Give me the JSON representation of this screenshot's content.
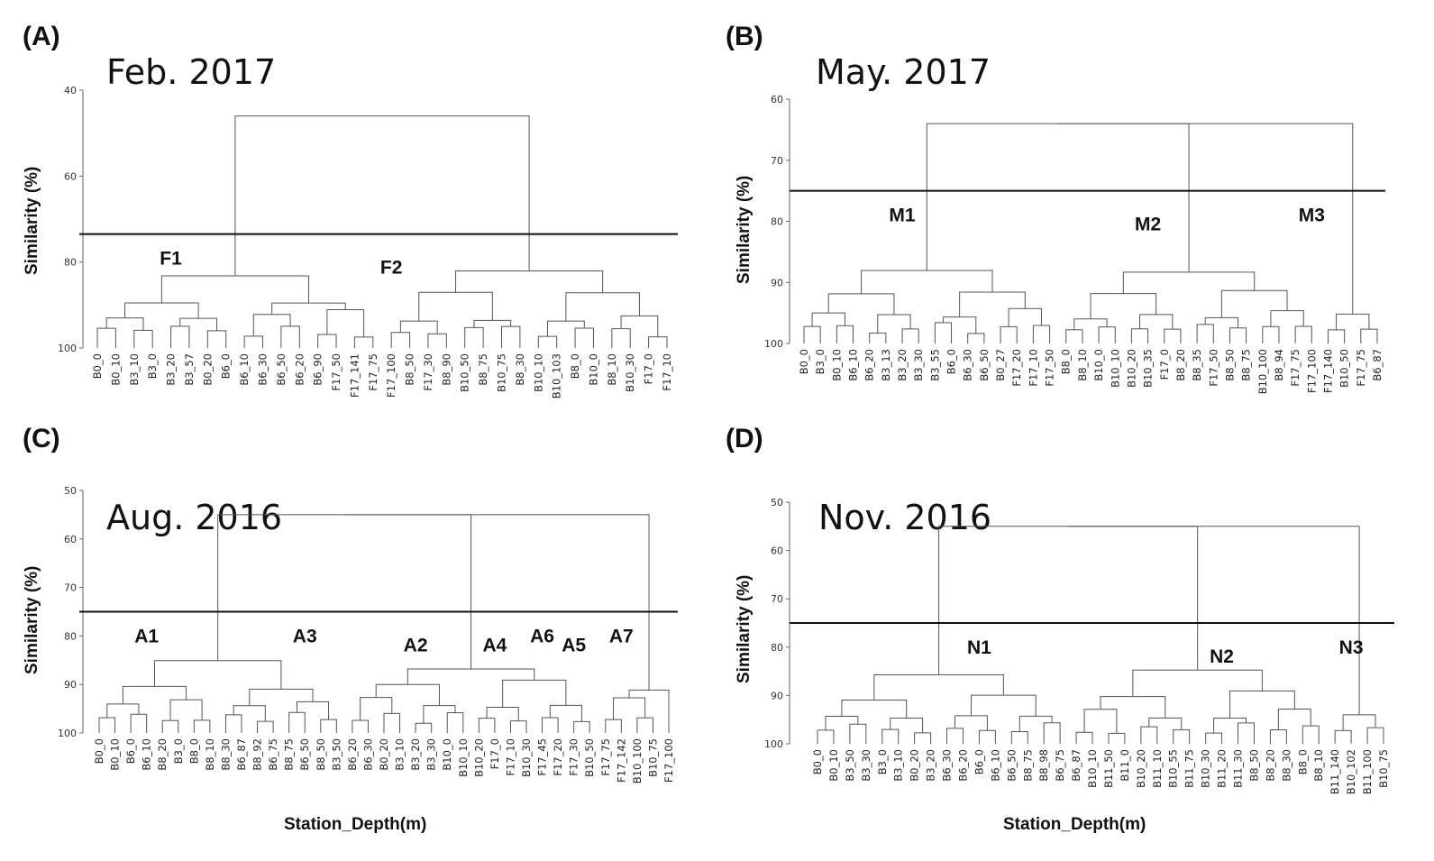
{
  "chart_data": [
    {
      "type": "dendrogram",
      "panel_label": "(A)",
      "title": "Feb. 2017",
      "ylabel": "Similarity (%)",
      "xlabel": "",
      "y_ticks": [
        40,
        60,
        80,
        100
      ],
      "ylim": [
        40,
        100
      ],
      "cut_line": 73.5,
      "leaves": [
        "B0_0",
        "B0_10",
        "B3_10",
        "B3_0",
        "B3_20",
        "B3_57",
        "B0_20",
        "B6_0",
        "B6_10",
        "B6_30",
        "B6_50",
        "B6_20",
        "B6_90",
        "F17_50",
        "F17_141",
        "F17_75",
        "F17_100",
        "B8_50",
        "F17_30",
        "B8_90",
        "B10_50",
        "B8_75",
        "B10_75",
        "B8_30",
        "B10_10",
        "B10_103",
        "B8_0",
        "B10_0",
        "B8_10",
        "B10_30",
        "F17_0",
        "F17_10"
      ],
      "merges": [
        {
          "a": 3,
          "b": 4,
          "y": 95.0
        },
        {
          "a": 13,
          "b": 14,
          "y": 95.0
        },
        {
          "a": 1,
          "b": 2,
          "y": 90.0
        },
        {
          "a": 27,
          "b": 28,
          "y": 94.0
        },
        {
          "a": 4,
          "b": 5,
          "y": 90.5
        },
        {
          "a": 8,
          "b": 12,
          "y": 94.0
        },
        {
          "a": 9,
          "b": 10,
          "y": 93.0
        },
        {
          "a": 6,
          "b": 7,
          "y": 92.0
        },
        {
          "a": 11,
          "b": 12,
          "y": 93.5
        },
        {
          "a": 22,
          "b": 23,
          "y": 92.5
        },
        {
          "a": 17,
          "b": 18,
          "y": 91.0
        },
        {
          "a": 13,
          "b": 14,
          "y": 92.0
        },
        {
          "a": 14,
          "b": 15,
          "y": 92.0
        },
        {
          "a": 27,
          "b": 29,
          "y": 93.0
        },
        {
          "a": 25,
          "b": 26,
          "y": 92.0
        }
      ],
      "groups": [
        {
          "label": "F1",
          "leaf_index": 4
        },
        {
          "label": "F2",
          "leaf_index": 16
        }
      ]
    },
    {
      "type": "dendrogram",
      "panel_label": "(B)",
      "title": "May. 2017",
      "ylabel": "Similarity (%)",
      "xlabel": "",
      "y_ticks": [
        60,
        70,
        80,
        90,
        100
      ],
      "ylim": [
        60,
        100
      ],
      "cut_line": 75,
      "leaves": [
        "B0_0",
        "B3_0",
        "B0_10",
        "B6_10",
        "B6_20",
        "B3_13",
        "B3_20",
        "B3_30",
        "B3_55",
        "B6_0",
        "B6_30",
        "B6_50",
        "B0_27",
        "F17_20",
        "F17_10",
        "F17_50",
        "B8_0",
        "B8_10",
        "B10_0",
        "B10_10",
        "B10_20",
        "B10_35",
        "F17_0",
        "B8_20",
        "B8_35",
        "F17_50",
        "B8_50",
        "B8_75",
        "B10_100",
        "B8_94",
        "F17_75",
        "F17_100",
        "F17_140",
        "B10_50",
        "F17_75",
        "B6_87"
      ],
      "groups": [
        {
          "label": "M1",
          "leaf_index": 6
        },
        {
          "label": "M2",
          "leaf_index": 21
        },
        {
          "label": "M3",
          "leaf_index": 31
        }
      ]
    },
    {
      "type": "dendrogram",
      "panel_label": "(C)",
      "title": "Aug. 2016",
      "ylabel": "Similarity (%)",
      "xlabel": "Station_Depth(m)",
      "y_ticks": [
        50,
        60,
        70,
        80,
        90,
        100
      ],
      "ylim": [
        50,
        100
      ],
      "cut_line": 75,
      "leaves": [
        "B0_0",
        "B0_10",
        "B6_0",
        "B6_10",
        "B8_20",
        "B3_0",
        "B8_0",
        "B8_10",
        "B8_30",
        "B6_87",
        "B8_92",
        "B6_75",
        "B8_75",
        "B6_50",
        "B8_50",
        "B3_50",
        "B6_20",
        "B6_30",
        "B0_20",
        "B3_10",
        "B3_20",
        "B3_30",
        "B10_0",
        "B10_10",
        "B10_20",
        "F17_0",
        "F17_10",
        "B10_30",
        "F17_45",
        "F17_20",
        "F17_30",
        "B10_50",
        "F17_75",
        "F17_142",
        "B10_100",
        "B10_75",
        "F17_100"
      ],
      "groups": [
        {
          "label": "A1",
          "leaf_index": 3
        },
        {
          "label": "A2",
          "leaf_index": 20
        },
        {
          "label": "A3",
          "leaf_index": 13
        },
        {
          "label": "A4",
          "leaf_index": 25
        },
        {
          "label": "A6",
          "leaf_index": 28
        },
        {
          "label": "A5",
          "leaf_index": 30
        },
        {
          "label": "A7",
          "leaf_index": 33
        }
      ]
    },
    {
      "type": "dendrogram",
      "panel_label": "(D)",
      "title": "Nov. 2016",
      "ylabel": "Similarity (%)",
      "xlabel": "Station_Depth(m)",
      "y_ticks": [
        50,
        60,
        70,
        80,
        90,
        100
      ],
      "ylim": [
        50,
        100
      ],
      "cut_line": 75,
      "leaves": [
        "B0_0",
        "B0_10",
        "B3_50",
        "B3_30",
        "B3_0",
        "B3_10",
        "B0_20",
        "B3_20",
        "B6_30",
        "B6_20",
        "B6_0",
        "B6_10",
        "B6_50",
        "B8_75",
        "B8_98",
        "B6_75",
        "B6_87",
        "B10_10",
        "B11_50",
        "B11_0",
        "B10_20",
        "B11_10",
        "B10_55",
        "B11_75",
        "B10_30",
        "B11_20",
        "B11_30",
        "B8_50",
        "B8_20",
        "B8_30",
        "B8_0",
        "B8_10",
        "B11_140",
        "B10_102",
        "B11_100",
        "B10_75"
      ],
      "groups": [
        {
          "label": "N1",
          "leaf_index": 10
        },
        {
          "label": "N2",
          "leaf_index": 25
        },
        {
          "label": "N3",
          "leaf_index": 33
        }
      ]
    }
  ]
}
